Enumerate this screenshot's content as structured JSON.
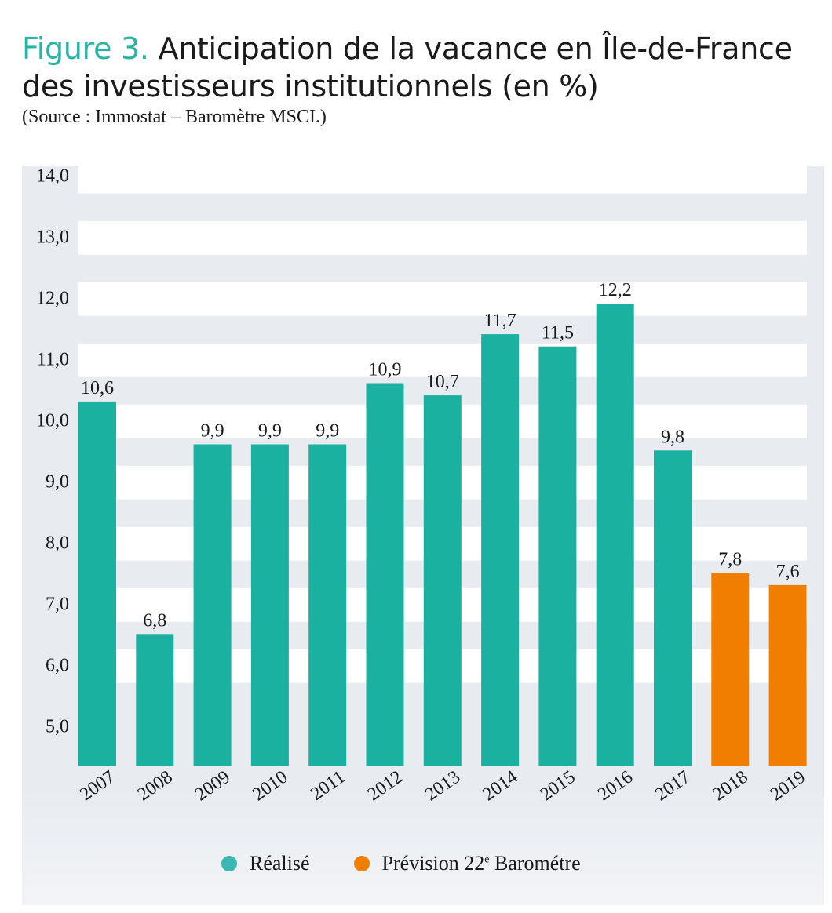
{
  "title": {
    "prefix": "Figure 3.",
    "line1": "Anticipation de la vacance en Île-de-France",
    "line2": "des investisseurs institutionnels (en %)",
    "source": "(Source : Immostat – Baromètre MSCI.)"
  },
  "legend": {
    "realise": "Réalisé",
    "prevision": "Prévision 22",
    "prevision_sup": "e",
    "prevision_suffix": " Barométre"
  },
  "colors": {
    "realise": "#1bb1a0",
    "prevision": "#f07f00",
    "legend_realise": "#3bb8b2",
    "legend_prevision": "#f07f00",
    "band": "#ffffff",
    "panel": "#e8ebf0"
  },
  "chart_data": {
    "type": "bar",
    "categories": [
      "2007",
      "2008",
      "2009",
      "2010",
      "2011",
      "2012",
      "2013",
      "2014",
      "2015",
      "2016",
      "2017",
      "2018",
      "2019"
    ],
    "values": [
      10.6,
      6.8,
      9.9,
      9.9,
      9.9,
      10.9,
      10.7,
      11.7,
      11.5,
      12.2,
      9.8,
      7.8,
      7.6
    ],
    "value_labels": [
      "10,6",
      "6,8",
      "9,9",
      "9,9",
      "9,9",
      "10,9",
      "10,7",
      "11,7",
      "11,5",
      "12,2",
      "9,8",
      "7,8",
      "7,6"
    ],
    "series_kind": [
      "realise",
      "realise",
      "realise",
      "realise",
      "realise",
      "realise",
      "realise",
      "realise",
      "realise",
      "realise",
      "realise",
      "prevision",
      "prevision"
    ],
    "yticks": [
      5.0,
      6.0,
      7.0,
      8.0,
      9.0,
      10.0,
      11.0,
      12.0,
      13.0,
      14.0
    ],
    "ytick_labels": [
      "5,0",
      "6,0",
      "7,0",
      "8,0",
      "9,0",
      "10,0",
      "11,0",
      "12,0",
      "13,0",
      "14,0"
    ],
    "ylim": [
      4.65,
      14.15
    ],
    "grid": "alternating horizontal bands",
    "legend_position": "bottom",
    "xlabel": "",
    "ylabel": ""
  }
}
